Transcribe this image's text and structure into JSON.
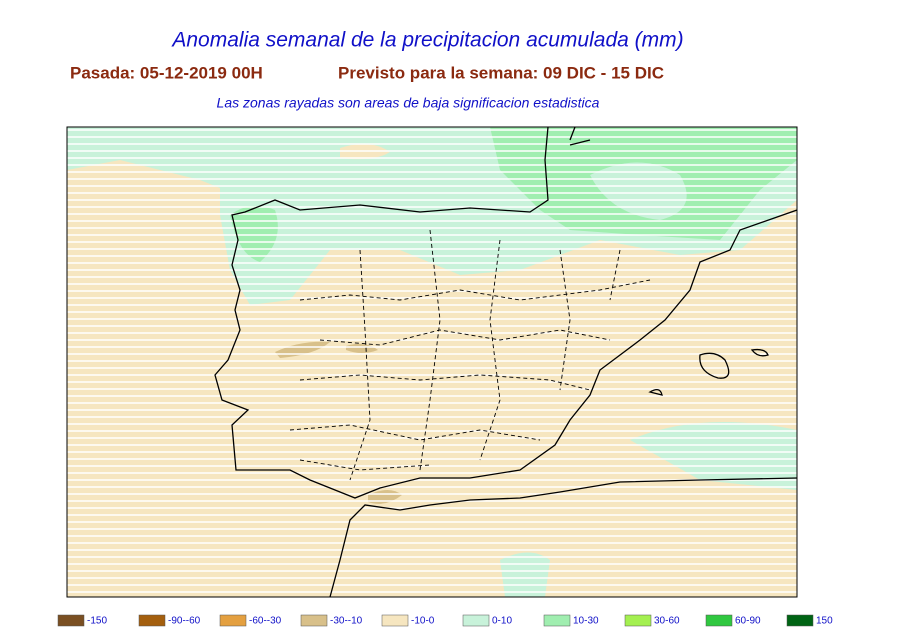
{
  "title": "Anomalia semanal de la precipitacion acumulada (mm)",
  "subtitle": {
    "run": "Pasada: 05-12-2019 00H",
    "forecast": "Previsto para la semana:  09 DIC - 15 DIC"
  },
  "note": "Las zonas rayadas son areas de baja significacion estadistica",
  "legend": [
    {
      "label": "-150",
      "color": "#7a4f22"
    },
    {
      "label": "-90--60",
      "color": "#a45f0e"
    },
    {
      "label": "-60--30",
      "color": "#e4a040"
    },
    {
      "label": "-30--10",
      "color": "#d8c08a"
    },
    {
      "label": "-10-0",
      "color": "#f6e6c0"
    },
    {
      "label": "0-10",
      "color": "#c8f2da"
    },
    {
      "label": "10-30",
      "color": "#a0eeb0"
    },
    {
      "label": "30-60",
      "color": "#a4f050"
    },
    {
      "label": "60-90",
      "color": "#30c840"
    },
    {
      "label": "150",
      "color": "#006414"
    }
  ]
}
